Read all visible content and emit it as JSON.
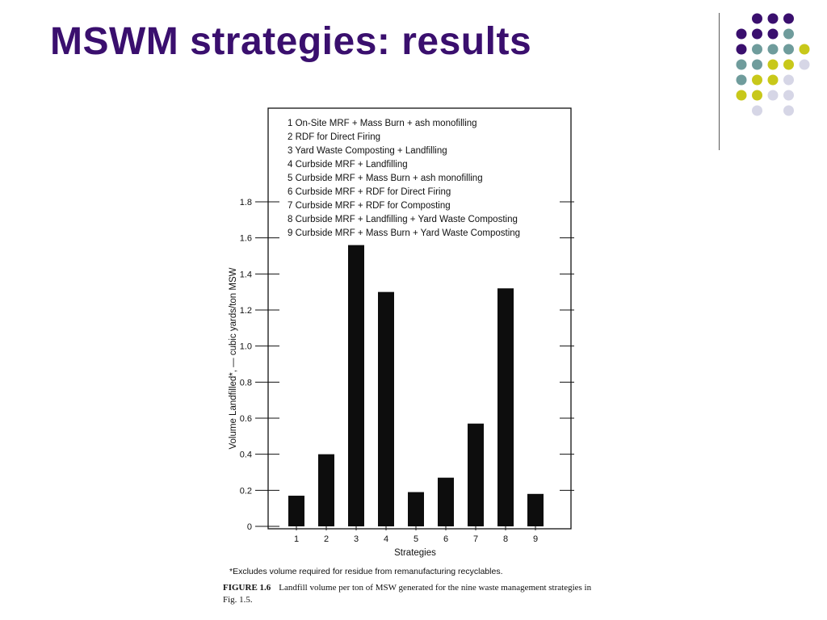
{
  "slide": {
    "title": "MSWM strategies: results",
    "colors": {
      "title": "#3a0f6e",
      "dot_purple": "#3a0f6e",
      "dot_teal": "#6f9c9c",
      "dot_yellow": "#c8c81a",
      "dot_lavender": "#d6d6e6"
    }
  },
  "chart_data": {
    "type": "bar",
    "categories": [
      "1",
      "2",
      "3",
      "4",
      "5",
      "6",
      "7",
      "8",
      "9"
    ],
    "values": [
      0.17,
      0.4,
      1.56,
      1.3,
      0.19,
      0.27,
      0.57,
      1.32,
      0.18
    ],
    "xlabel": "Strategies",
    "ylabel": "Volume Landfilled*, — cubic yards/ton MSW",
    "ylim": [
      0,
      1.8
    ],
    "yticks": [
      "0",
      "0.2",
      "0.4",
      "0.6",
      "0.8",
      "1.0",
      "1.2",
      "1.4",
      "1.6",
      "1.8"
    ],
    "legend_placement": "top",
    "legend": [
      "1  On-Site MRF + Mass Burn + ash monofilling",
      "2  RDF for Direct Firing",
      "3  Yard Waste Composting + Landfilling",
      "4  Curbside MRF + Landfilling",
      "5  Curbside MRF + Mass Burn + ash monofilling",
      "6  Curbside MRF + RDF for Direct Firing",
      "7  Curbside MRF + RDF for Composting",
      "8  Curbside MRF + Landfilling + Yard Waste Composting",
      "9  Curbside MRF + Mass Burn + Yard Waste Composting"
    ],
    "footnote": "*Excludes volume required for residue from remanufacturing recyclables.",
    "caption_label": "FIGURE 1.6",
    "caption_text": "Landfill volume per ton of MSW generated for the nine waste management strategies in Fig. 1.5."
  }
}
